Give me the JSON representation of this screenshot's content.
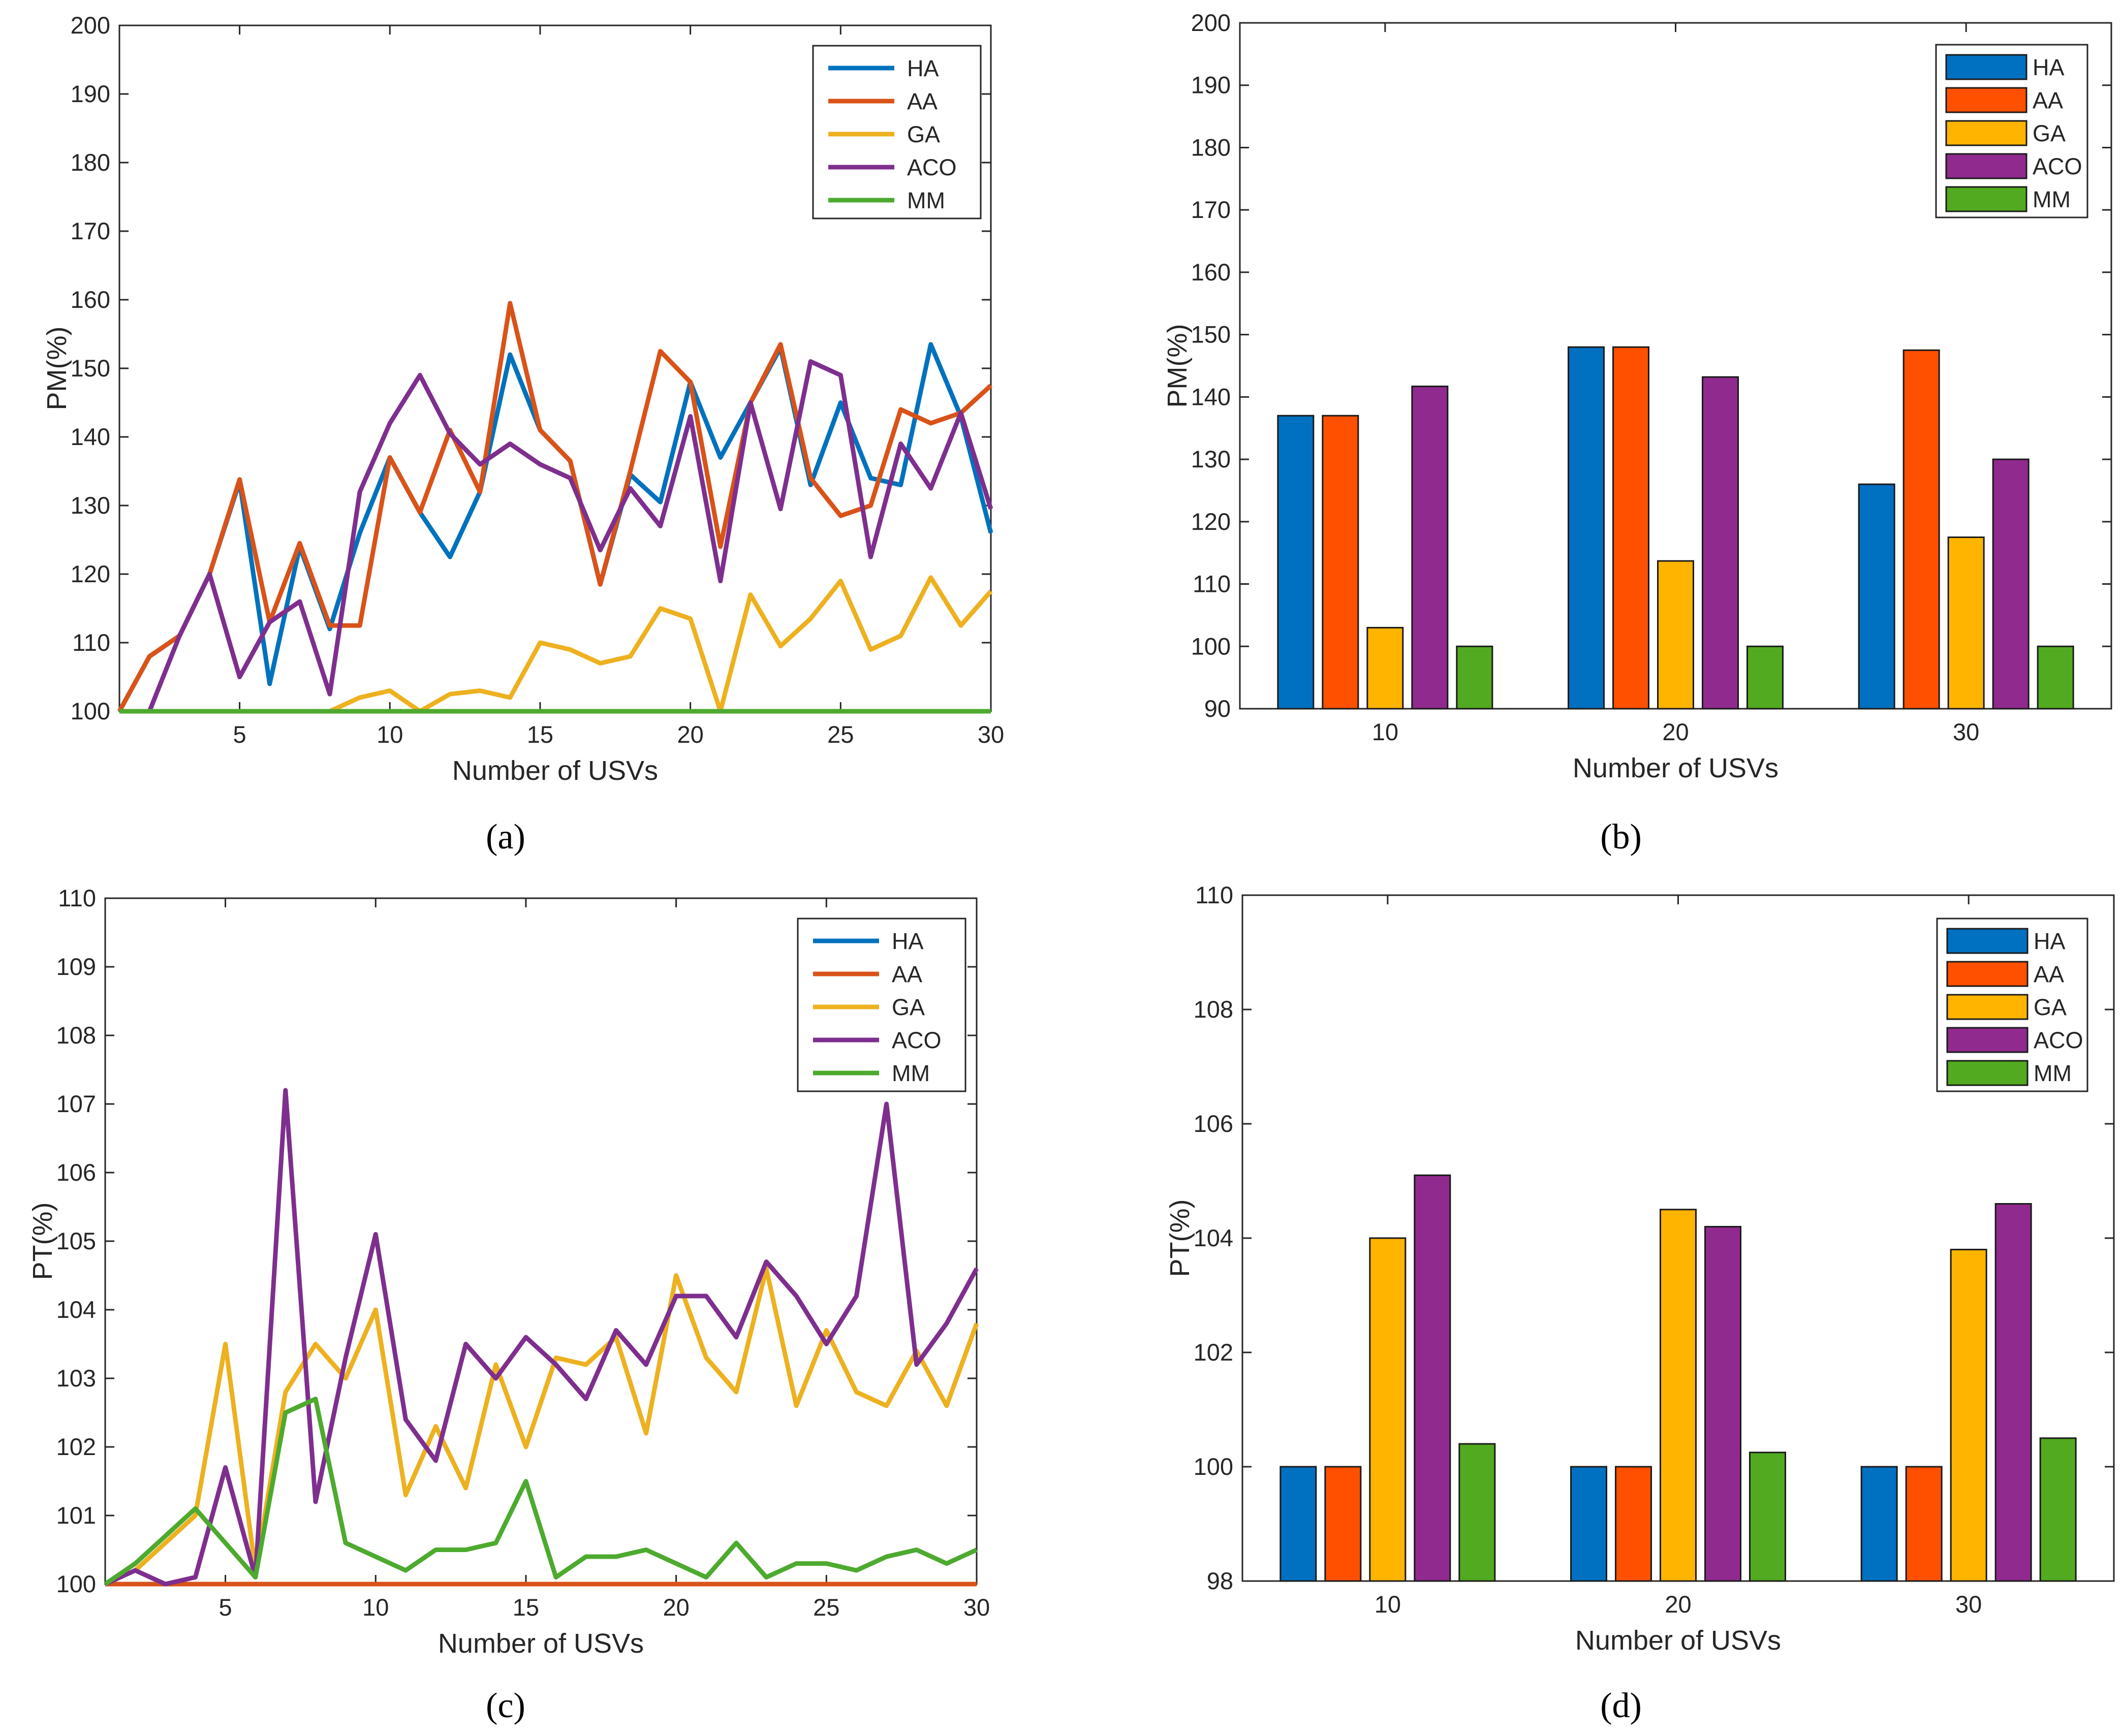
{
  "figure": {
    "panel_labels": [
      "(a)",
      "(b)",
      "(c)",
      "(d)"
    ]
  },
  "series_colors": {
    "HA": "#0072BD",
    "AA": "#D95319",
    "GA": "#EDB120",
    "ACO": "#7E2F8E",
    "MM": "#4DAA2F"
  },
  "bar_colors": {
    "HA": "#0070C0",
    "AA": "#FF5000",
    "GA": "#FFB400",
    "ACO": "#902A8E",
    "MM": "#52AA20"
  },
  "chart_data": [
    {
      "id": "a",
      "panel_label": "(a)",
      "type": "line",
      "xlabel": "Number of USVs",
      "ylabel": "PM(%)",
      "xlim": [
        1,
        30
      ],
      "ylim": [
        100,
        200
      ],
      "xticks": [
        5,
        10,
        15,
        20,
        25,
        30
      ],
      "yticks": [
        100,
        110,
        120,
        130,
        140,
        150,
        160,
        170,
        180,
        190,
        200
      ],
      "legend": [
        "HA",
        "AA",
        "GA",
        "ACO",
        "MM"
      ],
      "legend_position": "top-right",
      "x": [
        1,
        2,
        3,
        4,
        5,
        6,
        7,
        8,
        9,
        10,
        11,
        12,
        13,
        14,
        15,
        16,
        17,
        18,
        19,
        20,
        21,
        22,
        23,
        24,
        25,
        26,
        27,
        28,
        29,
        30
      ],
      "series": [
        {
          "name": "HA",
          "values": [
            100,
            108,
            111,
            120,
            133.5,
            104,
            124,
            112,
            126,
            137,
            129,
            122.5,
            132,
            152,
            141,
            136.5,
            118.5,
            134.5,
            130.5,
            148,
            137,
            145,
            153,
            133,
            145,
            134,
            133,
            153.5,
            143,
            126
          ]
        },
        {
          "name": "AA",
          "values": [
            100,
            108,
            111,
            120,
            133.8,
            113,
            124.5,
            112.5,
            112.5,
            137,
            129,
            141,
            132,
            159.5,
            141,
            136.5,
            118.5,
            135,
            152.5,
            148,
            124,
            145,
            153.5,
            134,
            128.5,
            130,
            144,
            142,
            143.5,
            147.5
          ]
        },
        {
          "name": "GA",
          "values": [
            100,
            100,
            100,
            100,
            100,
            100,
            100,
            100,
            102,
            103,
            100,
            102.5,
            103,
            102,
            110,
            109,
            107,
            108,
            115,
            113.5,
            100,
            117,
            109.5,
            113.5,
            119,
            109,
            111,
            119.5,
            112.5,
            117.5
          ]
        },
        {
          "name": "ACO",
          "values": [
            100,
            100,
            111,
            120,
            105,
            113,
            116,
            102.5,
            132,
            142,
            149,
            140.5,
            136,
            139,
            136,
            134,
            123.5,
            132.5,
            127,
            143,
            119,
            145,
            129.5,
            151,
            149,
            122.5,
            139,
            132.5,
            143.5,
            129.5
          ]
        },
        {
          "name": "MM",
          "values": [
            100,
            100,
            100,
            100,
            100,
            100,
            100,
            100,
            100,
            100,
            100,
            100,
            100,
            100,
            100,
            100,
            100,
            100,
            100,
            100,
            100,
            100,
            100,
            100,
            100,
            100,
            100,
            100,
            100,
            100
          ]
        }
      ]
    },
    {
      "id": "b",
      "panel_label": "(b)",
      "type": "bar",
      "xlabel": "Number of USVs",
      "ylabel": "PM(%)",
      "ylim": [
        90,
        200
      ],
      "yticks": [
        90,
        100,
        110,
        120,
        130,
        140,
        150,
        160,
        170,
        180,
        190,
        200
      ],
      "categories": [
        "10",
        "20",
        "30"
      ],
      "legend": [
        "HA",
        "AA",
        "GA",
        "ACO",
        "MM"
      ],
      "legend_position": "top-right",
      "series": [
        {
          "name": "HA",
          "values": [
            137,
            148,
            126
          ]
        },
        {
          "name": "AA",
          "values": [
            137,
            148,
            147.5
          ]
        },
        {
          "name": "GA",
          "values": [
            103,
            113.7,
            117.5
          ]
        },
        {
          "name": "ACO",
          "values": [
            141.7,
            143.2,
            130
          ]
        },
        {
          "name": "MM",
          "values": [
            100,
            100,
            100
          ]
        }
      ]
    },
    {
      "id": "c",
      "panel_label": "(c)",
      "type": "line",
      "xlabel": "Number of USVs",
      "ylabel": "PT(%)",
      "xlim": [
        1,
        30
      ],
      "ylim": [
        100,
        110
      ],
      "xticks": [
        5,
        10,
        15,
        20,
        25,
        30
      ],
      "yticks": [
        100,
        101,
        102,
        103,
        104,
        105,
        106,
        107,
        108,
        109,
        110
      ],
      "legend": [
        "HA",
        "AA",
        "GA",
        "ACO",
        "MM"
      ],
      "legend_position": "top-right",
      "x": [
        1,
        2,
        3,
        4,
        5,
        6,
        7,
        8,
        9,
        10,
        11,
        12,
        13,
        14,
        15,
        16,
        17,
        18,
        19,
        20,
        21,
        22,
        23,
        24,
        25,
        26,
        27,
        28,
        29,
        30
      ],
      "series": [
        {
          "name": "HA",
          "values": [
            100,
            100,
            100,
            100,
            100,
            100,
            100,
            100,
            100,
            100,
            100,
            100,
            100,
            100,
            100,
            100,
            100,
            100,
            100,
            100,
            100,
            100,
            100,
            100,
            100,
            100,
            100,
            100,
            100,
            100
          ]
        },
        {
          "name": "AA",
          "values": [
            100,
            100,
            100,
            100,
            100,
            100,
            100,
            100,
            100,
            100,
            100,
            100,
            100,
            100,
            100,
            100,
            100,
            100,
            100,
            100,
            100,
            100,
            100,
            100,
            100,
            100,
            100,
            100,
            100,
            100
          ]
        },
        {
          "name": "GA",
          "values": [
            100,
            100.2,
            100.6,
            101,
            103.5,
            100.2,
            102.8,
            103.5,
            103,
            104,
            101.3,
            102.3,
            101.4,
            103.2,
            102,
            103.3,
            103.2,
            103.6,
            102.2,
            104.5,
            103.3,
            102.8,
            104.6,
            102.6,
            103.7,
            102.8,
            102.6,
            103.4,
            102.6,
            103.8
          ]
        },
        {
          "name": "ACO",
          "values": [
            100,
            100.2,
            100,
            100.1,
            101.7,
            100.1,
            107.2,
            101.2,
            103.3,
            105.1,
            102.4,
            101.8,
            103.5,
            103,
            103.6,
            103.2,
            102.7,
            103.7,
            103.2,
            104.2,
            104.2,
            103.6,
            104.7,
            104.2,
            103.5,
            104.2,
            107,
            103.2,
            103.8,
            104.6
          ]
        },
        {
          "name": "MM",
          "values": [
            100,
            100.3,
            100.7,
            101.1,
            100.6,
            100.1,
            102.5,
            102.7,
            100.6,
            100.4,
            100.2,
            100.5,
            100.5,
            100.6,
            101.5,
            100.1,
            100.4,
            100.4,
            100.5,
            100.3,
            100.1,
            100.6,
            100.1,
            100.3,
            100.3,
            100.2,
            100.4,
            100.5,
            100.3,
            100.5
          ]
        }
      ]
    },
    {
      "id": "d",
      "panel_label": "(d)",
      "type": "bar",
      "xlabel": "Number of USVs",
      "ylabel": "PT(%)",
      "ylim": [
        98,
        110
      ],
      "yticks": [
        98,
        100,
        102,
        104,
        106,
        108,
        110
      ],
      "categories": [
        "10",
        "20",
        "30"
      ],
      "legend": [
        "HA",
        "AA",
        "GA",
        "ACO",
        "MM"
      ],
      "legend_position": "top-right",
      "series": [
        {
          "name": "HA",
          "values": [
            100,
            100,
            100
          ]
        },
        {
          "name": "AA",
          "values": [
            100,
            100,
            100
          ]
        },
        {
          "name": "GA",
          "values": [
            104,
            104.5,
            103.8
          ]
        },
        {
          "name": "ACO",
          "values": [
            105.1,
            104.2,
            104.6
          ]
        },
        {
          "name": "MM",
          "values": [
            100.4,
            100.25,
            100.5
          ]
        }
      ]
    }
  ]
}
